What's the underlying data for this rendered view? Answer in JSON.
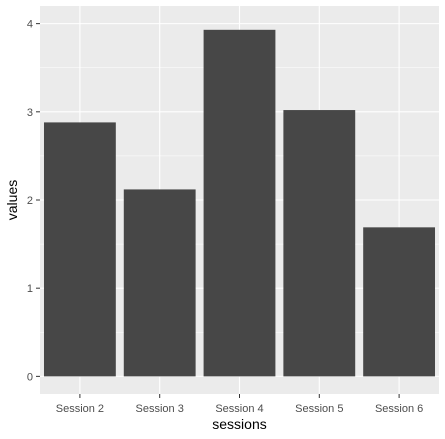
{
  "chart_data": {
    "type": "bar",
    "title": "",
    "xlabel": "sessions",
    "ylabel": "values",
    "categories": [
      "Session 2",
      "Session 3",
      "Session 4",
      "Session 5",
      "Session 6"
    ],
    "values": [
      2.88,
      2.12,
      3.93,
      3.02,
      1.69
    ],
    "ylim": [
      -0.2,
      4.2
    ],
    "yticks": [
      0,
      1,
      2,
      3,
      4
    ],
    "grid": true,
    "colors": {
      "panel_background": "#ebebeb",
      "gridline": "#ffffff",
      "bar_fill": "#474747",
      "tick_mark": "#333333",
      "tick_text": "#4d4d4d"
    }
  }
}
